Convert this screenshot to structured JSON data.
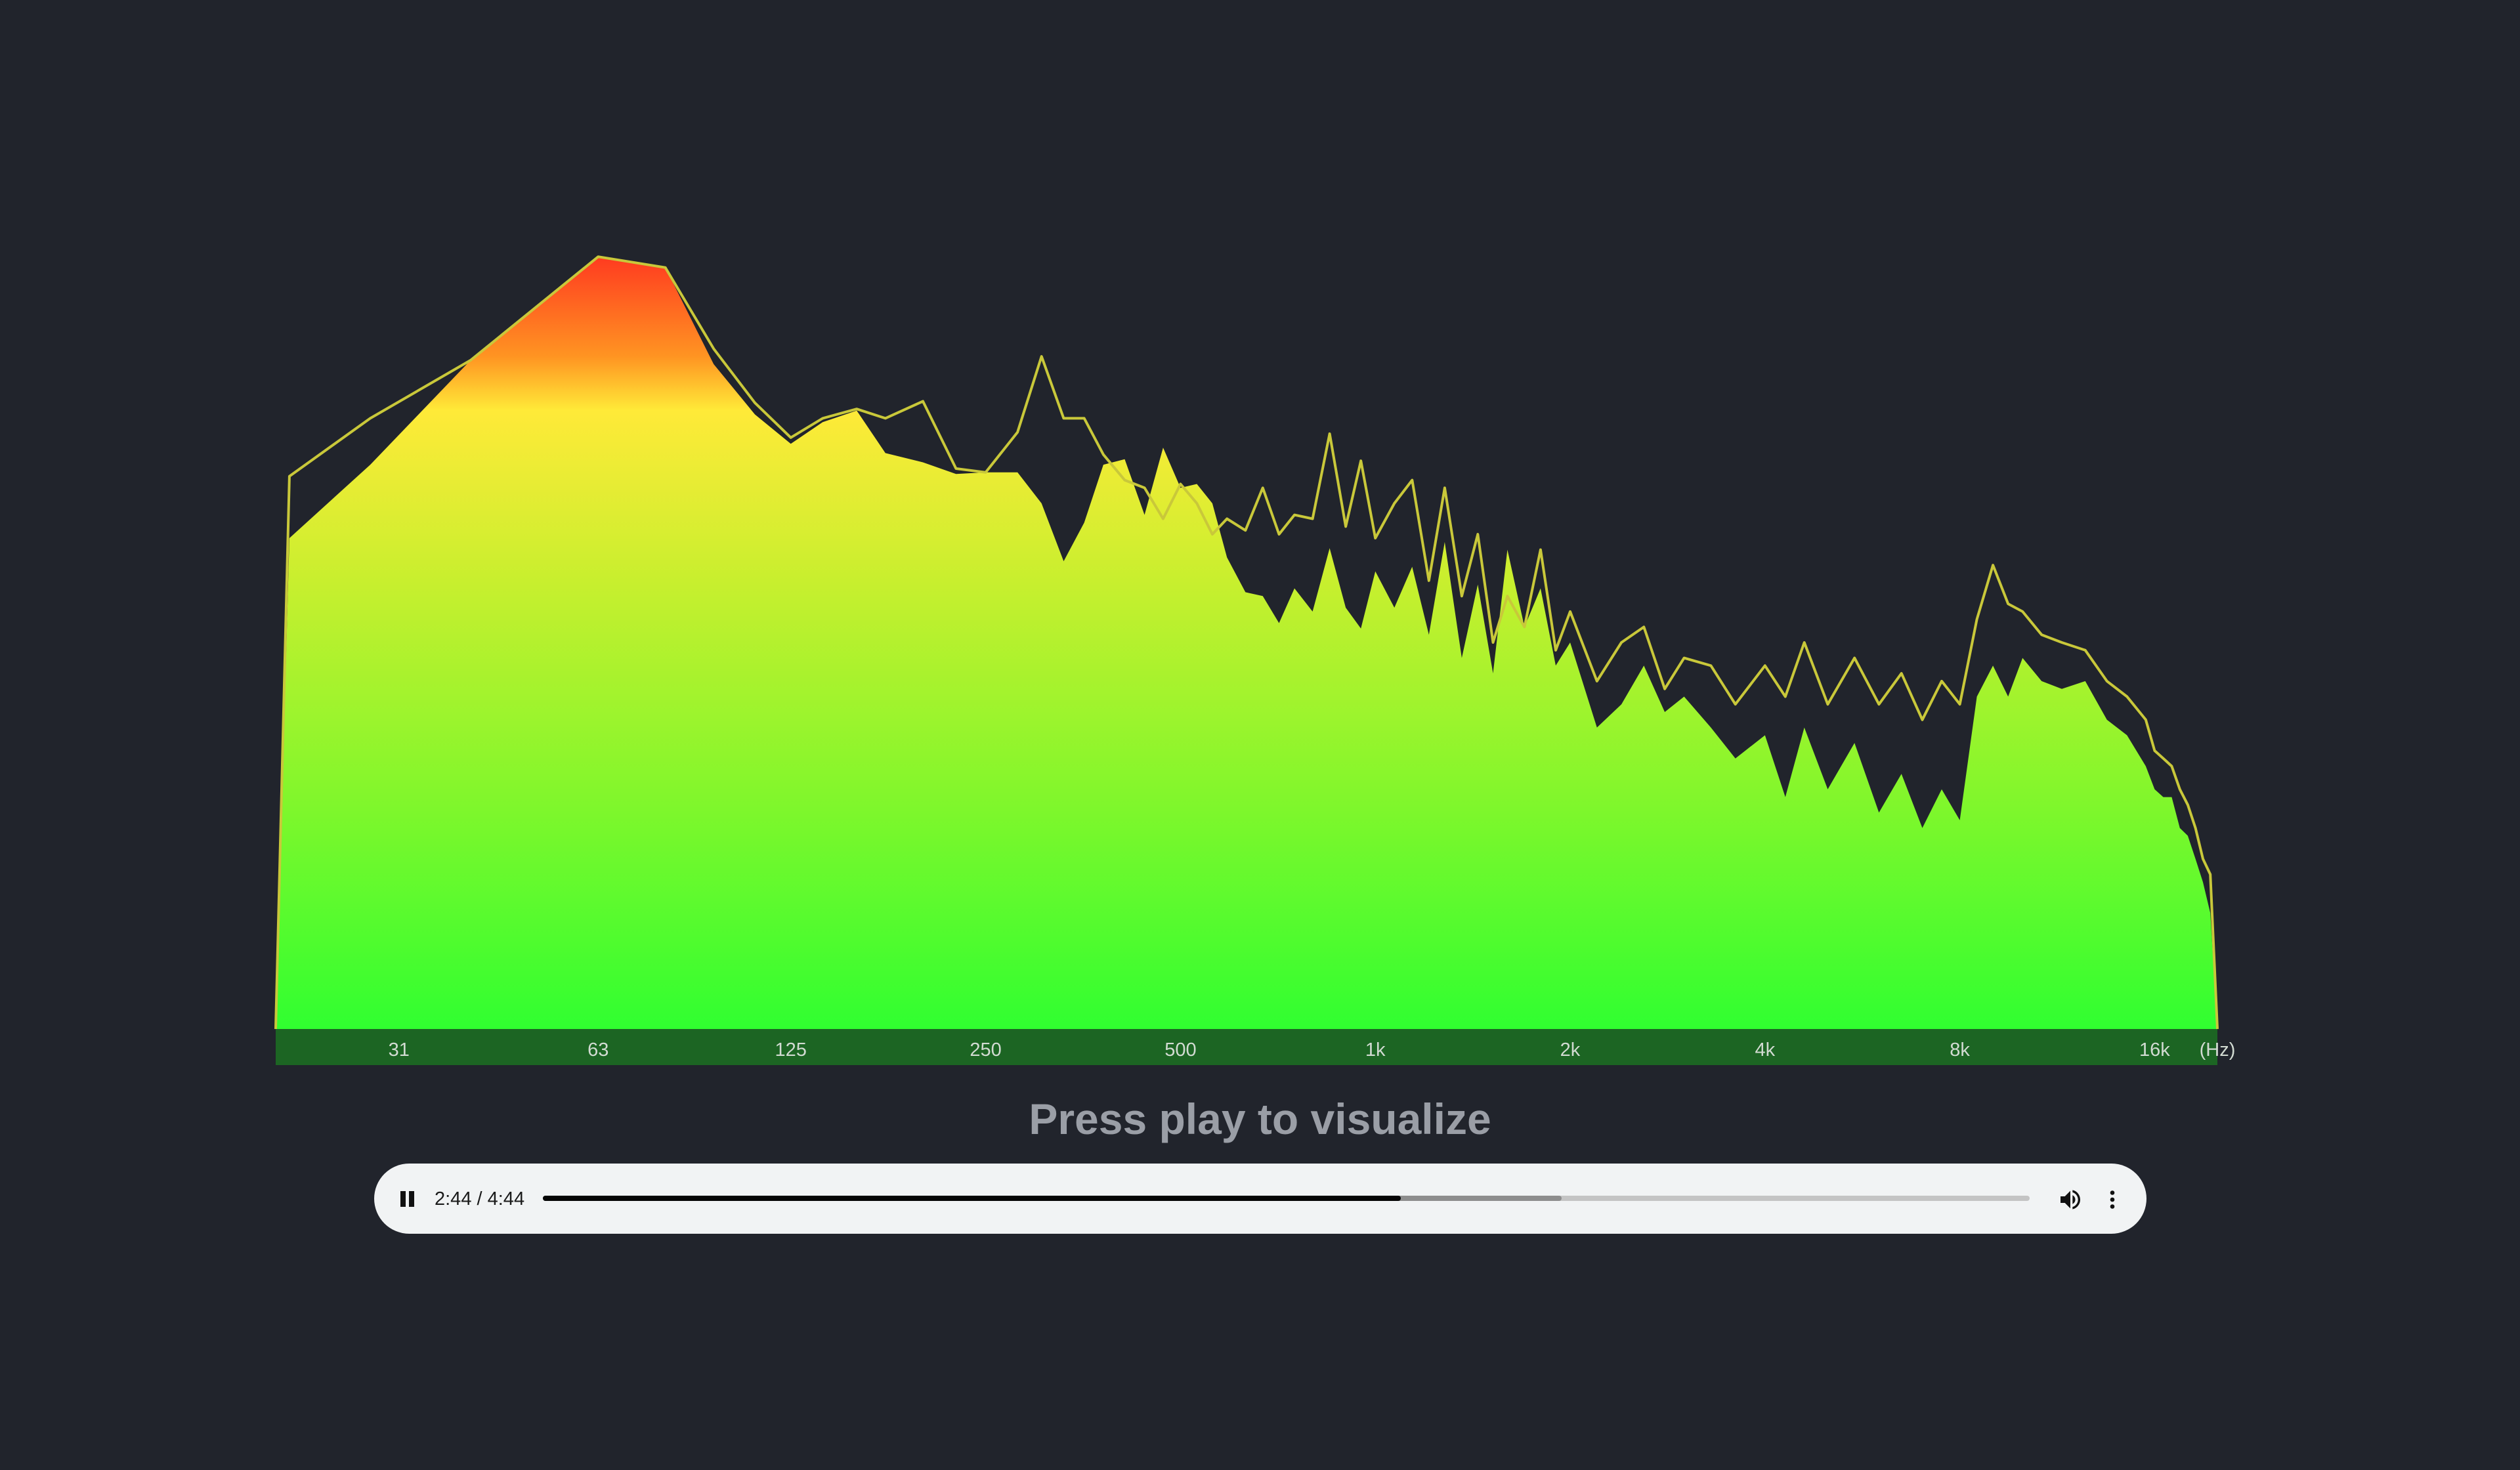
{
  "page": {
    "background": "#21242c",
    "status_message": "Press play to visualize"
  },
  "chart_data": {
    "type": "area",
    "title": "",
    "xlabel": "",
    "ylabel": "",
    "x_scale": "log",
    "x_unit_label": "(Hz)",
    "xlim": [
      20,
      20000
    ],
    "ylim": [
      0,
      1
    ],
    "grid": false,
    "legend": "none",
    "x_ticks": [
      {
        "value": 31,
        "label": "31"
      },
      {
        "value": 63,
        "label": "63"
      },
      {
        "value": 125,
        "label": "125"
      },
      {
        "value": 250,
        "label": "250"
      },
      {
        "value": 500,
        "label": "500"
      },
      {
        "value": 1000,
        "label": "1k"
      },
      {
        "value": 2000,
        "label": "2k"
      },
      {
        "value": 4000,
        "label": "4k"
      },
      {
        "value": 8000,
        "label": "8k"
      },
      {
        "value": 16000,
        "label": "16k"
      }
    ],
    "series": [
      {
        "role": "level",
        "render": "gradient-fill",
        "x": [
          20,
          21,
          28,
          40,
          63,
          80,
          95,
          110,
          125,
          140,
          158,
          175,
          200,
          225,
          250,
          280,
          305,
          330,
          355,
          380,
          410,
          440,
          470,
          500,
          530,
          560,
          590,
          630,
          670,
          710,
          750,
          800,
          850,
          900,
          950,
          1000,
          1070,
          1140,
          1210,
          1280,
          1360,
          1440,
          1520,
          1600,
          1700,
          1800,
          1900,
          2000,
          2200,
          2400,
          2600,
          2800,
          3000,
          3300,
          3600,
          4000,
          4300,
          4600,
          5000,
          5500,
          6000,
          6500,
          7000,
          7500,
          8000,
          8500,
          9000,
          9500,
          10000,
          10700,
          11500,
          12500,
          13500,
          14500,
          15500,
          16000,
          16500,
          17000,
          17500,
          18000,
          18500,
          19000,
          19500,
          20000
        ],
        "values": [
          0.0,
          0.635,
          0.73,
          0.865,
          0.999,
          0.985,
          0.86,
          0.795,
          0.757,
          0.785,
          0.8,
          0.745,
          0.733,
          0.718,
          0.72,
          0.72,
          0.68,
          0.605,
          0.655,
          0.73,
          0.737,
          0.665,
          0.752,
          0.7,
          0.705,
          0.68,
          0.61,
          0.565,
          0.56,
          0.525,
          0.57,
          0.54,
          0.622,
          0.545,
          0.518,
          0.592,
          0.545,
          0.598,
          0.51,
          0.63,
          0.48,
          0.575,
          0.46,
          0.62,
          0.52,
          0.57,
          0.47,
          0.5,
          0.39,
          0.42,
          0.47,
          0.41,
          0.43,
          0.39,
          0.35,
          0.38,
          0.3,
          0.39,
          0.31,
          0.37,
          0.28,
          0.33,
          0.26,
          0.31,
          0.27,
          0.43,
          0.47,
          0.43,
          0.48,
          0.45,
          0.44,
          0.45,
          0.4,
          0.38,
          0.34,
          0.31,
          0.3,
          0.3,
          0.26,
          0.25,
          0.22,
          0.19,
          0.15,
          0.0
        ]
      },
      {
        "role": "peak-hold",
        "render": "line",
        "color": "#c9c83a",
        "x": [
          20,
          21,
          28,
          40,
          63,
          80,
          95,
          110,
          125,
          140,
          158,
          175,
          200,
          225,
          250,
          280,
          305,
          330,
          355,
          380,
          410,
          440,
          470,
          500,
          530,
          560,
          590,
          630,
          670,
          710,
          750,
          800,
          850,
          900,
          950,
          1000,
          1070,
          1140,
          1210,
          1280,
          1360,
          1440,
          1520,
          1600,
          1700,
          1800,
          1900,
          2000,
          2200,
          2400,
          2600,
          2800,
          3000,
          3300,
          3600,
          4000,
          4300,
          4600,
          5000,
          5500,
          6000,
          6500,
          7000,
          7500,
          8000,
          8500,
          9000,
          9500,
          10000,
          10700,
          11500,
          12500,
          13500,
          14500,
          15500,
          16000,
          16500,
          17000,
          17500,
          18000,
          18500,
          19000,
          19500,
          20000
        ],
        "values": [
          0.0,
          0.715,
          0.79,
          0.865,
          0.999,
          0.985,
          0.88,
          0.81,
          0.765,
          0.79,
          0.802,
          0.79,
          0.812,
          0.725,
          0.72,
          0.772,
          0.87,
          0.79,
          0.79,
          0.743,
          0.71,
          0.7,
          0.66,
          0.705,
          0.68,
          0.64,
          0.66,
          0.645,
          0.7,
          0.64,
          0.665,
          0.66,
          0.77,
          0.65,
          0.735,
          0.635,
          0.68,
          0.71,
          0.58,
          0.7,
          0.56,
          0.64,
          0.5,
          0.56,
          0.52,
          0.62,
          0.49,
          0.54,
          0.45,
          0.5,
          0.52,
          0.44,
          0.48,
          0.47,
          0.42,
          0.47,
          0.43,
          0.5,
          0.42,
          0.48,
          0.42,
          0.46,
          0.4,
          0.45,
          0.42,
          0.53,
          0.6,
          0.55,
          0.54,
          0.51,
          0.5,
          0.49,
          0.45,
          0.43,
          0.4,
          0.36,
          0.35,
          0.34,
          0.31,
          0.29,
          0.26,
          0.22,
          0.2,
          0.0
        ]
      }
    ],
    "gradient": [
      "#ff3a20",
      "#ff9422",
      "#ffea38",
      "#c8ef2e",
      "#7df72c",
      "#30ff30"
    ],
    "scale_bar_color": "#1c6523"
  },
  "player": {
    "time_current": "2:44",
    "time_separator": " / ",
    "time_total": "4:44",
    "progress_fraction": 0.577,
    "buffered_fraction": 0.685,
    "play_state_icon": "pause-icon",
    "volume_icon": "volume-icon",
    "menu_icon": "more-vert-icon"
  }
}
